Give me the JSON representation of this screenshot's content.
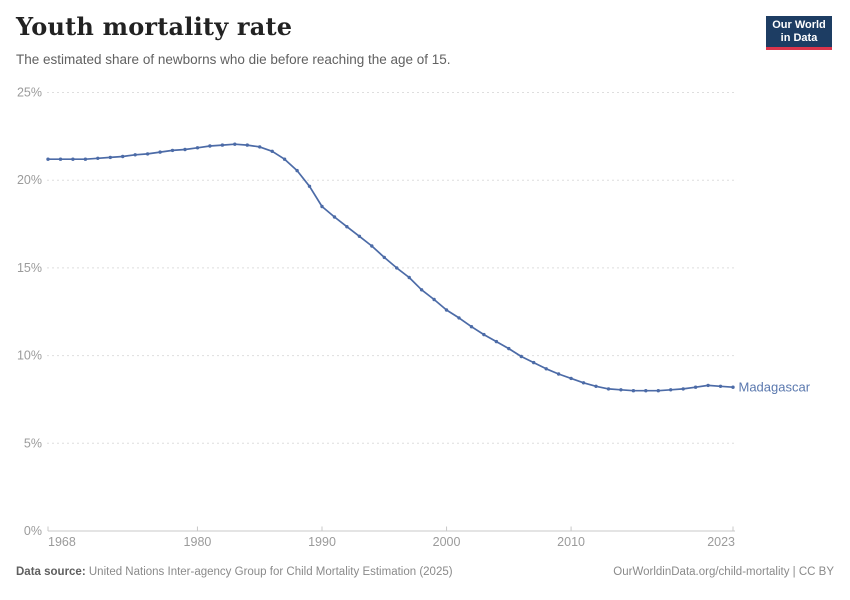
{
  "header": {
    "title": "Youth mortality rate",
    "subtitle": "The estimated share of newborns who die before reaching the age of 15.",
    "logo": {
      "line1": "Our World",
      "line2": "in Data",
      "bg_color": "#1d3d63",
      "accent_color": "#dc354b"
    }
  },
  "chart_data": {
    "type": "line",
    "title": "Youth mortality rate",
    "xlabel": "",
    "ylabel": "",
    "xlim": [
      1968,
      2023
    ],
    "ylim": [
      0,
      25
    ],
    "grid": "horizontal-dashed",
    "legend_position": "end-of-line-label",
    "xticks": [
      1968,
      1980,
      1990,
      2000,
      2010,
      2023
    ],
    "yticks": [
      0,
      5,
      10,
      15,
      20,
      25
    ],
    "ytick_suffix": "%",
    "x": [
      1968,
      1969,
      1970,
      1971,
      1972,
      1973,
      1974,
      1975,
      1976,
      1977,
      1978,
      1979,
      1980,
      1981,
      1982,
      1983,
      1984,
      1985,
      1986,
      1987,
      1988,
      1989,
      1990,
      1991,
      1992,
      1993,
      1994,
      1995,
      1996,
      1997,
      1998,
      1999,
      2000,
      2001,
      2002,
      2003,
      2004,
      2005,
      2006,
      2007,
      2008,
      2009,
      2010,
      2011,
      2012,
      2013,
      2014,
      2015,
      2016,
      2017,
      2018,
      2019,
      2020,
      2021,
      2022,
      2023
    ],
    "series": [
      {
        "name": "Madagascar",
        "color": "#4c6ba7",
        "label_color": "#5a78ae",
        "values": [
          21.2,
          21.2,
          21.2,
          21.2,
          21.25,
          21.3,
          21.35,
          21.45,
          21.5,
          21.6,
          21.7,
          21.75,
          21.85,
          21.95,
          22.0,
          22.05,
          22.0,
          21.9,
          21.65,
          21.2,
          20.55,
          19.65,
          18.5,
          17.9,
          17.35,
          16.8,
          16.25,
          15.6,
          15.0,
          14.45,
          13.75,
          13.2,
          12.6,
          12.15,
          11.65,
          11.2,
          10.8,
          10.4,
          9.95,
          9.6,
          9.25,
          8.95,
          8.7,
          8.45,
          8.25,
          8.1,
          8.05,
          8.0,
          8.0,
          8.0,
          8.05,
          8.1,
          8.2,
          8.3,
          8.25,
          8.2
        ]
      }
    ],
    "axis_color": "#c8c8c8",
    "gridline_color": "#dedede",
    "tick_label_color": "#9b9b9b"
  },
  "footer": {
    "source_label": "Data source:",
    "source_text": "United Nations Inter-agency Group for Child Mortality Estimation (2025)",
    "link_text": "OurWorldinData.org/child-mortality | CC BY"
  }
}
